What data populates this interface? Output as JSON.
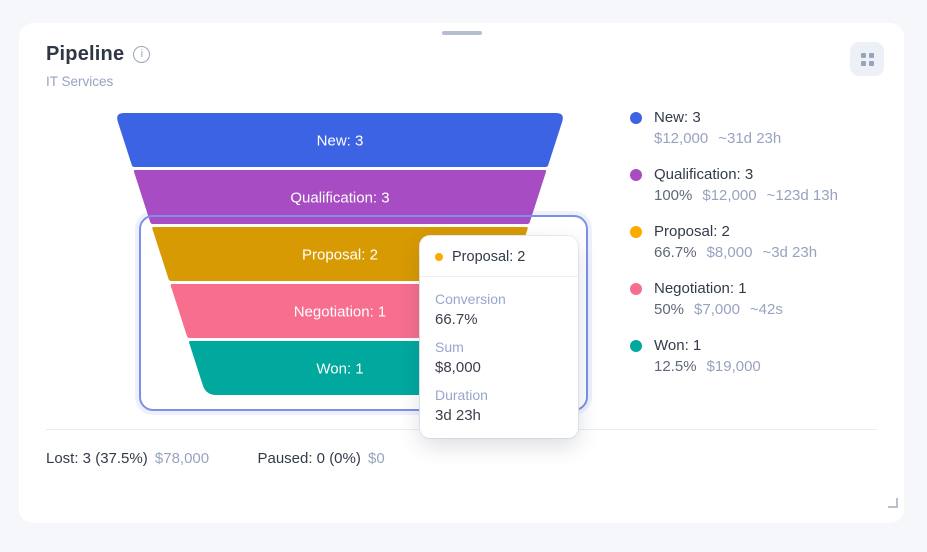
{
  "header": {
    "title": "Pipeline",
    "subtitle": "IT Services"
  },
  "chart_data": {
    "type": "funnel",
    "title": "Pipeline",
    "funnel_name": "IT Services",
    "legend_position": "right",
    "stages": [
      {
        "stage": "New",
        "label": "New: 3",
        "count": 3,
        "color": "#3c63e4",
        "legend_dot_color": "#3c63e4",
        "conversion": "",
        "sum": "$12,000",
        "duration": "~31d 23h"
      },
      {
        "stage": "Qualification",
        "label": "Qualification: 3",
        "count": 3,
        "color": "#a74cc3",
        "legend_dot_color": "#a74cc3",
        "conversion": "100%",
        "sum": "$12,000",
        "duration": "~123d 13h"
      },
      {
        "stage": "Proposal",
        "label": "Proposal: 2",
        "count": 2,
        "color": "#d89a03",
        "legend_dot_color": "#fbab00",
        "conversion": "66.7%",
        "sum": "$8,000",
        "duration": "~3d 23h"
      },
      {
        "stage": "Negotiation",
        "label": "Negotiation: 1",
        "count": 1,
        "color": "#f76e8e",
        "legend_dot_color": "#f76e8e",
        "conversion": "50%",
        "sum": "$7,000",
        "duration": "~42s"
      },
      {
        "stage": "Won",
        "label": "Won: 1",
        "count": 1,
        "color": "#00a89d",
        "legend_dot_color": "#00a89d",
        "conversion": "12.5%",
        "sum": "$19,000",
        "duration": ""
      }
    ],
    "highlighted_stages": [
      "Proposal",
      "Negotiation",
      "Won"
    ],
    "selection_border_color": "#7d90e8"
  },
  "tooltip": {
    "title": "Proposal: 2",
    "dot_color": "#fbab00",
    "rows": [
      {
        "label": "Conversion",
        "value": "66.7%"
      },
      {
        "label": "Sum",
        "value": "$8,000"
      },
      {
        "label": "Duration",
        "value": "3d 23h"
      }
    ]
  },
  "footer": {
    "lost_label": "Lost: 3 (37.5%)",
    "lost_value": "$78,000",
    "paused_label": "Paused: 0 (0%)",
    "paused_value": "$0"
  },
  "icons": {
    "info": "info-icon",
    "grid": "grid-icon",
    "drag_handle": "drag-handle",
    "resize": "resize-handle-icon"
  },
  "colors": {
    "background": "#f5f7fb",
    "card": "#ffffff",
    "text_dark": "#333b49",
    "text_gray": "#98a3bf",
    "text_pct": "#5f6878",
    "divider": "#e9ecf3"
  }
}
